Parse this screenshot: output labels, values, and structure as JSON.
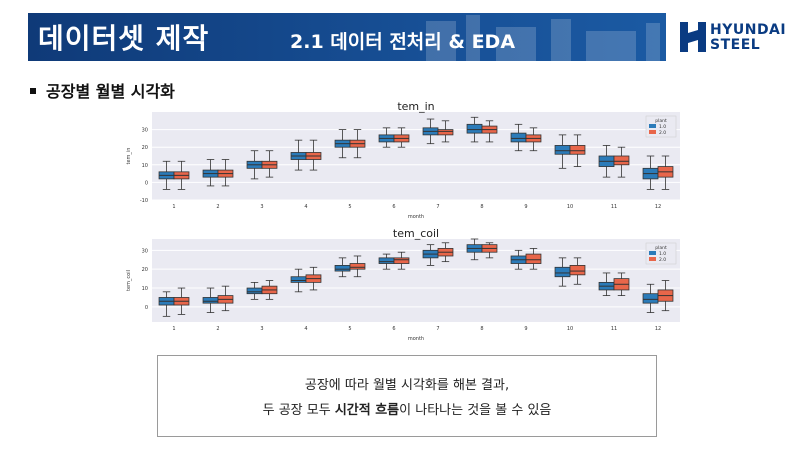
{
  "header": {
    "title": "데이터셋 제작",
    "subtitle": "2.1 데이터 전처리 & EDA",
    "brand_line1": "HYUNDAI",
    "brand_line2": "STEEL"
  },
  "section": {
    "heading": "공장별 월별 시각화"
  },
  "caption": {
    "line1": "공장에 따라 월별 시각화를 해본 결과,",
    "line2_prefix": "두 공장 모두 ",
    "line2_bold": "시간적 흐름",
    "line2_suffix": "이 나타나는 것을 볼 수 있음"
  },
  "colors": {
    "banner": "#174f95",
    "plant1": "#2b7bb9",
    "plant2": "#e8664a",
    "plot_bg": "#eaeaf2",
    "brand": "#0a3b82"
  },
  "chart_data": [
    {
      "type": "box",
      "title": "tem_in",
      "xlabel": "month",
      "ylabel": "tem_in",
      "categories": [
        "1",
        "2",
        "3",
        "4",
        "5",
        "6",
        "7",
        "8",
        "9",
        "10",
        "11",
        "12"
      ],
      "yticks": [
        -10,
        0,
        10,
        20,
        30
      ],
      "ylim": [
        -10,
        40
      ],
      "legend": {
        "title": "plant",
        "entries": [
          "1.0",
          "2.0"
        ],
        "position": "top-right"
      },
      "series": [
        {
          "name": "1.0",
          "q1": [
            2,
            3,
            8,
            13,
            20,
            23,
            27,
            28,
            23,
            16,
            9,
            2
          ],
          "med": [
            4,
            5,
            10,
            15,
            22,
            25,
            29,
            30,
            25,
            18,
            12,
            5
          ],
          "q3": [
            6,
            7,
            12,
            17,
            24,
            27,
            31,
            33,
            28,
            21,
            15,
            8
          ],
          "wlo": [
            -4,
            -2,
            2,
            7,
            14,
            20,
            22,
            23,
            18,
            8,
            3,
            -4
          ],
          "whi": [
            12,
            13,
            18,
            24,
            30,
            31,
            36,
            37,
            33,
            27,
            21,
            15
          ]
        },
        {
          "name": "2.0",
          "q1": [
            2,
            3,
            8,
            13,
            20,
            23,
            27,
            28,
            23,
            16,
            10,
            3
          ],
          "med": [
            4,
            5,
            10,
            15,
            22,
            25,
            29,
            30,
            25,
            18,
            12,
            6
          ],
          "q3": [
            6,
            7,
            12,
            17,
            24,
            27,
            30,
            32,
            27,
            21,
            15,
            9
          ],
          "wlo": [
            -4,
            -2,
            3,
            7,
            14,
            20,
            23,
            23,
            18,
            9,
            3,
            -4
          ],
          "whi": [
            12,
            13,
            18,
            24,
            30,
            31,
            35,
            35,
            31,
            27,
            20,
            15
          ]
        }
      ]
    },
    {
      "type": "box",
      "title": "tem_coil",
      "xlabel": "month",
      "ylabel": "tem_coil",
      "categories": [
        "1",
        "2",
        "3",
        "4",
        "5",
        "6",
        "7",
        "8",
        "9",
        "10",
        "11",
        "12"
      ],
      "yticks": [
        0,
        10,
        20,
        30
      ],
      "ylim": [
        -8,
        36
      ],
      "legend": {
        "title": "plant",
        "entries": [
          "1.0",
          "2.0"
        ],
        "position": "top-right"
      },
      "series": [
        {
          "name": "1.0",
          "q1": [
            1,
            2,
            7,
            13,
            19,
            23,
            26,
            29,
            23,
            16,
            9,
            2
          ],
          "med": [
            3,
            3,
            8,
            14,
            20,
            24,
            28,
            31,
            25,
            18,
            11,
            4
          ],
          "q3": [
            5,
            5,
            10,
            16,
            22,
            26,
            30,
            33,
            27,
            21,
            13,
            7
          ],
          "wlo": [
            -5,
            -3,
            4,
            8,
            16,
            20,
            22,
            25,
            20,
            11,
            6,
            -3
          ],
          "whi": [
            8,
            10,
            13,
            20,
            26,
            28,
            33,
            36,
            30,
            26,
            18,
            12
          ]
        },
        {
          "name": "2.0",
          "q1": [
            1,
            2,
            7,
            13,
            20,
            23,
            27,
            29,
            23,
            17,
            9,
            3
          ],
          "med": [
            3,
            4,
            9,
            15,
            21,
            25,
            29,
            31,
            25,
            19,
            12,
            6
          ],
          "q3": [
            5,
            6,
            11,
            17,
            23,
            26,
            31,
            33,
            28,
            22,
            15,
            9
          ],
          "wlo": [
            -4,
            -2,
            4,
            9,
            16,
            20,
            24,
            26,
            20,
            12,
            6,
            -2
          ],
          "whi": [
            10,
            11,
            14,
            21,
            27,
            29,
            34,
            34,
            31,
            26,
            18,
            14
          ]
        }
      ]
    }
  ]
}
